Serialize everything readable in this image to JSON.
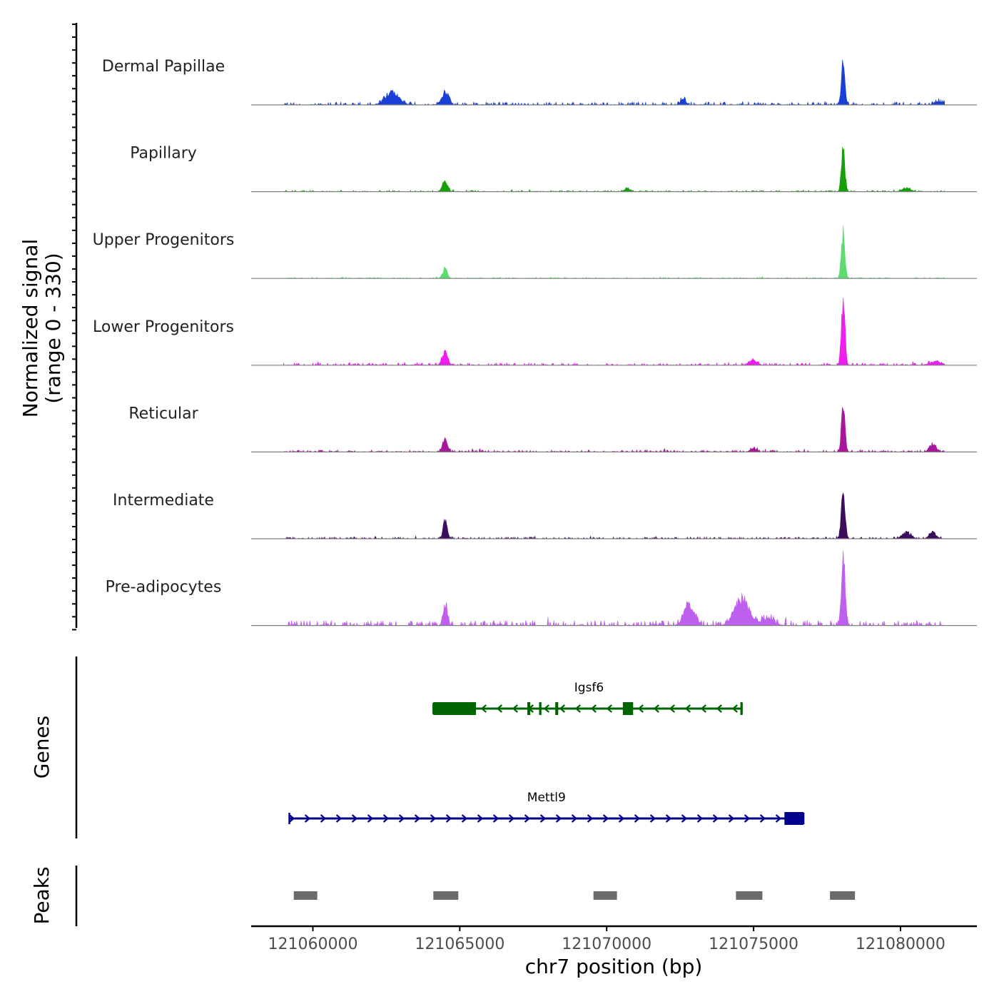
{
  "chart_data": {
    "type": "area",
    "chromosome": "chr7",
    "x_range_bp": [
      121057900,
      121082600
    ],
    "y_axis_title_line1": "Normalized signal",
    "y_axis_title_line2": "(range 0 - 330)",
    "y_range": [
      0,
      330
    ],
    "x_axis_title": "chr7 position (bp)",
    "x_ticks": [
      121060000,
      121065000,
      121070000,
      121075000,
      121080000
    ],
    "x_tick_labels": [
      "121060000",
      "121065000",
      "121070000",
      "121075000",
      "121080000"
    ],
    "signal_start": 121059000,
    "signal_end": 121081500,
    "tracks": [
      {
        "name": "Dermal Papillae",
        "color": "#1a3fd6",
        "peaks": [
          [
            121062700,
            0.28,
            220
          ],
          [
            121064500,
            0.28,
            120
          ],
          [
            121072600,
            0.13,
            90
          ],
          [
            121078050,
            1.0,
            60
          ],
          [
            121081300,
            0.07,
            150
          ]
        ],
        "noise": 0.05
      },
      {
        "name": "Papillary",
        "color": "#16a008",
        "peaks": [
          [
            121064500,
            0.22,
            90
          ],
          [
            121070700,
            0.08,
            90
          ],
          [
            121078050,
            0.88,
            60
          ],
          [
            121080200,
            0.07,
            150
          ]
        ],
        "noise": 0.025
      },
      {
        "name": "Upper Progenitors",
        "color": "#5edc6f",
        "peaks": [
          [
            121064500,
            0.22,
            80
          ],
          [
            121078050,
            1.02,
            60
          ]
        ],
        "noise": 0.02
      },
      {
        "name": "Lower Progenitors",
        "color": "#ee1df0",
        "peaks": [
          [
            121064500,
            0.32,
            90
          ],
          [
            121075000,
            0.1,
            120
          ],
          [
            121078050,
            1.6,
            60
          ],
          [
            121081200,
            0.08,
            200
          ]
        ],
        "noise": 0.04
      },
      {
        "name": "Reticular",
        "color": "#a8169c",
        "peaks": [
          [
            121064500,
            0.3,
            80
          ],
          [
            121075000,
            0.08,
            110
          ],
          [
            121078050,
            1.0,
            60
          ],
          [
            121081100,
            0.18,
            110
          ]
        ],
        "noise": 0.035
      },
      {
        "name": "Intermediate",
        "color": "#3b0d5c",
        "peaks": [
          [
            121064500,
            0.38,
            70
          ],
          [
            121078050,
            1.12,
            60
          ],
          [
            121080200,
            0.13,
            150
          ],
          [
            121081100,
            0.14,
            120
          ]
        ],
        "noise": 0.03
      },
      {
        "name": "Pre-adipocytes",
        "color": "#bf5ff0",
        "peaks": [
          [
            121064500,
            0.45,
            70
          ],
          [
            121072800,
            0.5,
            170
          ],
          [
            121074600,
            0.55,
            250
          ],
          [
            121075500,
            0.15,
            200
          ],
          [
            121078050,
            1.6,
            60
          ]
        ],
        "noise": 0.09
      }
    ]
  },
  "genes_track": {
    "label": "Genes",
    "genes": [
      {
        "name": "Igsf6",
        "strand": "-",
        "start": 121064100,
        "end": 121074600,
        "color": "#006400",
        "exons": [
          [
            121064100,
            121065550
          ],
          [
            121067300,
            121067400
          ],
          [
            121067700,
            121067780
          ],
          [
            121068250,
            121068350
          ],
          [
            121070550,
            121070900
          ],
          [
            121074550,
            121074600
          ]
        ]
      },
      {
        "name": "Mettl9",
        "strand": "+",
        "start": 121059200,
        "end": 121076700,
        "color": "#00008b",
        "exons": [
          [
            121076050,
            121076700
          ]
        ]
      }
    ]
  },
  "peaks_track": {
    "label": "Peaks",
    "color": "#6b6b6b",
    "regions": [
      [
        121059350,
        121060150
      ],
      [
        121064100,
        121064950
      ],
      [
        121069550,
        121070350
      ],
      [
        121074400,
        121075300
      ],
      [
        121077600,
        121078450
      ]
    ]
  }
}
